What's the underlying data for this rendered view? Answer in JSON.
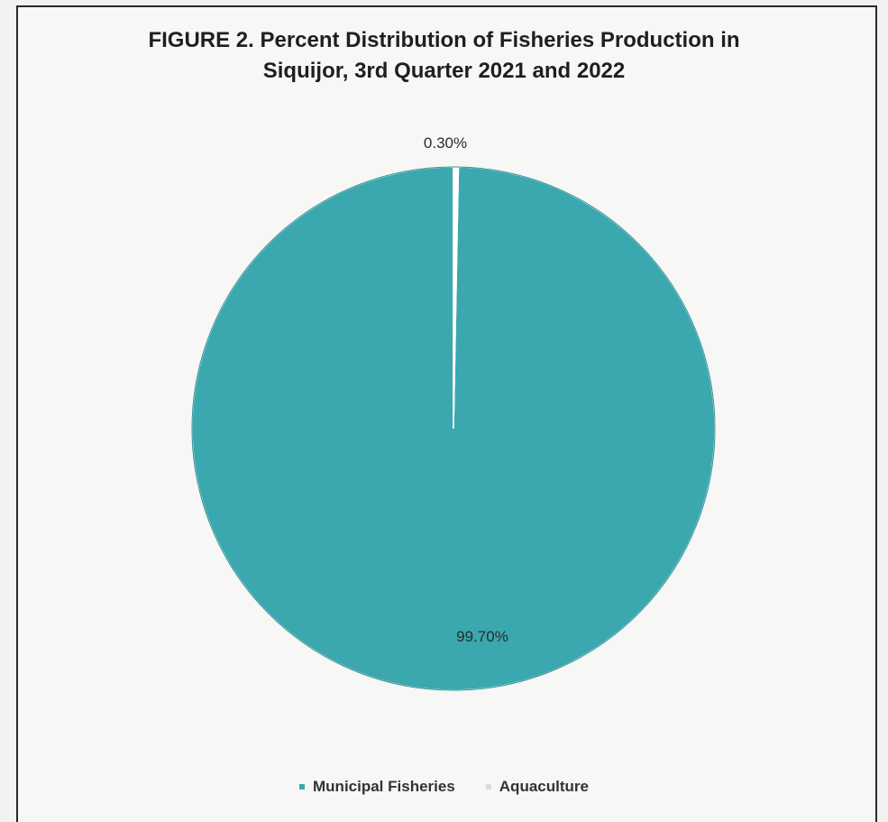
{
  "chart_data": {
    "type": "pie",
    "title_lines": [
      "FIGURE 2. Percent Distribution of Fisheries Production in",
      "Siquijor, 3rd Quarter 2021 and 2022"
    ],
    "series": [
      {
        "name": "Municipal Fisheries",
        "value": 99.7,
        "label": "99.70%",
        "color": "#3aa8ae"
      },
      {
        "name": "Aquaculture",
        "value": 0.3,
        "label": "0.30%",
        "color": "#ffffff"
      }
    ],
    "legend_position": "bottom"
  }
}
